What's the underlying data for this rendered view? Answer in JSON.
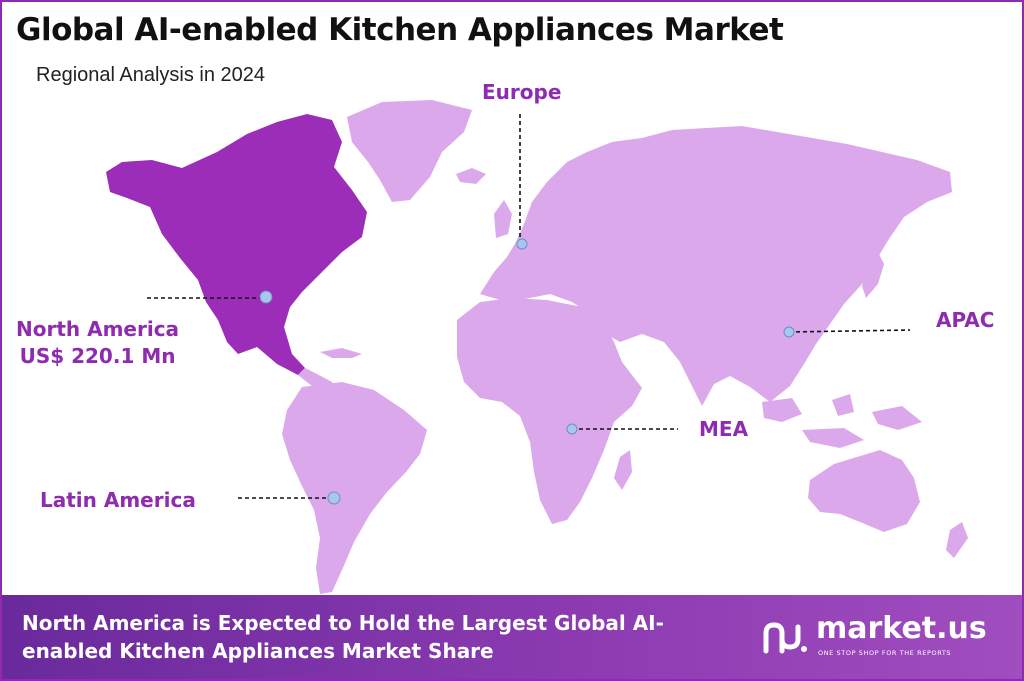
{
  "title": "Global AI-enabled Kitchen Appliances Market",
  "subtitle": "Regional Analysis in 2024",
  "regions": {
    "north_america": {
      "name": "North America",
      "value": "US$ 220.1 Mn",
      "highlighted": true
    },
    "europe": {
      "name": "Europe"
    },
    "apac": {
      "name": "APAC"
    },
    "mea": {
      "name": "MEA"
    },
    "latin_america": {
      "name": "Latin America"
    }
  },
  "footer": {
    "text": "North America is Expected to Hold the Largest Global AI-enabled Kitchen Appliances Market Share"
  },
  "logo": {
    "name": "market.us",
    "tagline": "ONE STOP SHOP FOR THE REPORTS"
  },
  "colors": {
    "highlight": "#9b2db8",
    "land": "#dca8ec",
    "accent_text": "#8e2bb0",
    "footer": "#7b34a8",
    "marker": "#a9c6ec"
  }
}
